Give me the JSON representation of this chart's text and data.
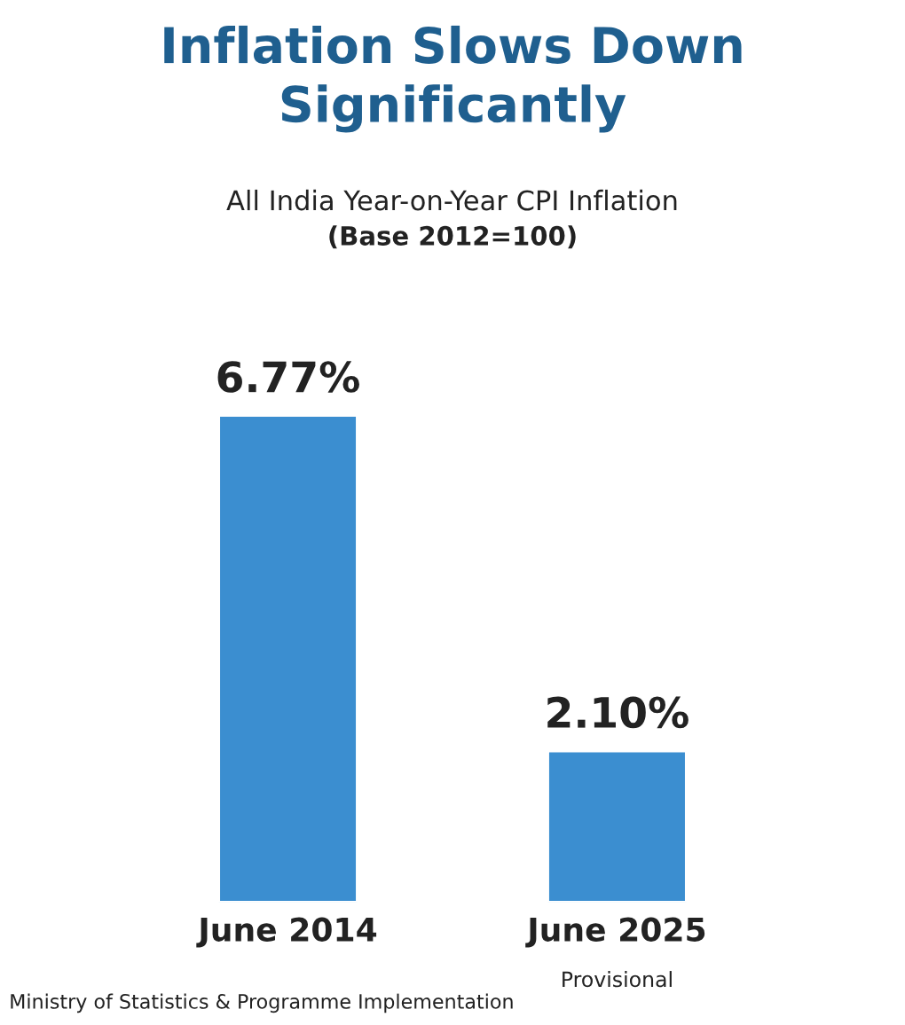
{
  "chart_data": {
    "type": "bar",
    "title": "Inflation Slows Down\nSignificantly",
    "subtitle": "All India Year-on-Year CPI Inflation",
    "categories": [
      "June 2014",
      "June 2025"
    ],
    "values": [
      6.77,
      2.1
    ],
    "value_labels": [
      "6.77%",
      "2.10%"
    ],
    "color": "#3b8ed0",
    "annotations": [
      "(Base 2012=100)",
      "Provisional",
      "Ministry of Statistics & Programme Implementation"
    ],
    "grid": false,
    "legend": false
  }
}
